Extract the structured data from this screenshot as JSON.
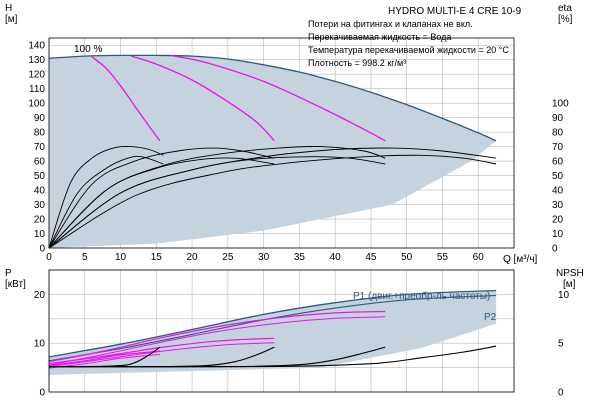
{
  "title": "HYDRO MULTI-E 4 CRE 10-9",
  "info_lines": [
    "Потери на фитингах и клапанах не вкл.",
    "Перекачиваемая жидкость = Вода",
    "Температура перекачиваемой жидкости = 20 °C",
    "Плотность = 998.2 кг/м³"
  ],
  "colors": {
    "envelope_fill": "#c5d3de",
    "envelope_edge": "#2e5a80",
    "speed_curve": "#ee11ee",
    "efficiency": "#000000",
    "npsh": "#000000"
  },
  "chart_data": [
    {
      "type": "line",
      "name": "head",
      "xlabel": "Q [м³/ч]",
      "ylabel": "H\n[м]",
      "ylabel_top": "H",
      "ylabel_unit": "[м]",
      "y2label_top": "eta",
      "y2label_unit": "[%]",
      "xlim": [
        0,
        65
      ],
      "ylim": [
        0,
        145
      ],
      "xticks": [
        0,
        5,
        10,
        15,
        20,
        25,
        30,
        35,
        40,
        45,
        50,
        55,
        60
      ],
      "yticks": [
        0,
        10,
        20,
        30,
        40,
        50,
        60,
        70,
        80,
        90,
        100,
        110,
        120,
        130,
        140
      ],
      "y2ticks": [
        0,
        10,
        20,
        30,
        40,
        50,
        60,
        70,
        80,
        90,
        100
      ],
      "grid": true,
      "annotation": "100 %",
      "envelope_top": {
        "x": [
          0,
          5,
          10,
          15,
          20,
          25,
          30,
          35,
          40,
          45,
          50,
          55,
          60,
          62.5
        ],
        "y": [
          131,
          132.5,
          133,
          133,
          132.5,
          130.5,
          126.5,
          121.5,
          115,
          107.5,
          99,
          89.5,
          79.5,
          74
        ]
      },
      "speed_curves": [
        {
          "x": [
            6,
            8,
            10,
            12,
            14,
            15.5
          ],
          "y": [
            132,
            124,
            112,
            98,
            84,
            74
          ]
        },
        {
          "x": [
            11.5,
            15,
            20,
            25,
            29,
            31.5
          ],
          "y": [
            132.5,
            127,
            116,
            101,
            87,
            74
          ]
        },
        {
          "x": [
            17,
            22,
            30,
            38,
            44,
            47
          ],
          "y": [
            133,
            128,
            115,
            97,
            82,
            74
          ]
        }
      ],
      "efficiency_curves": [
        {
          "x": [
            0,
            3,
            6,
            9,
            11.5,
            14,
            16
          ],
          "y": [
            0,
            45,
            62,
            69,
            70,
            68,
            64
          ]
        },
        {
          "x": [
            0,
            4,
            8,
            11,
            13,
            16
          ],
          "y": [
            0,
            38,
            55,
            62,
            63,
            58
          ]
        },
        {
          "x": [
            0,
            6,
            12,
            18,
            23,
            27,
            31.5
          ],
          "y": [
            0,
            44,
            60,
            67,
            69,
            67,
            62
          ]
        },
        {
          "x": [
            0,
            8,
            15,
            21,
            26,
            31.5
          ],
          "y": [
            0,
            40,
            55,
            61,
            62,
            58
          ]
        },
        {
          "x": [
            0,
            8,
            16,
            24,
            32,
            38,
            44,
            47
          ],
          "y": [
            0,
            40,
            57,
            65,
            69,
            70,
            67,
            62
          ]
        },
        {
          "x": [
            0,
            10,
            20,
            28,
            36,
            42,
            47
          ],
          "y": [
            0,
            38,
            54,
            61,
            63,
            62,
            58
          ]
        },
        {
          "x": [
            0,
            10,
            20,
            30,
            40,
            48,
            55,
            62.5
          ],
          "y": [
            0,
            38,
            54,
            63,
            68,
            69,
            67,
            62
          ]
        },
        {
          "x": [
            0,
            12,
            24,
            34,
            44,
            52,
            58,
            62.5
          ],
          "y": [
            0,
            36,
            52,
            59,
            63,
            64,
            62,
            58
          ]
        }
      ]
    },
    {
      "type": "line",
      "name": "power_npsh",
      "xlim": [
        0,
        65
      ],
      "ylim": [
        0,
        25
      ],
      "ylabel_top": "P",
      "ylabel_unit": "[кВт]",
      "y2label_top": "NPSH",
      "y2label_unit": "[м]",
      "y2lim": [
        0,
        12.5
      ],
      "yticks": [
        0,
        10,
        20
      ],
      "y2ticks": [
        0,
        5,
        10
      ],
      "grid": true,
      "series_labels": [
        "P1 (двиг.+преобр-ль частоты)",
        "P2"
      ],
      "P1": {
        "x": [
          0,
          10,
          20,
          30,
          40,
          50,
          62.5
        ],
        "y": [
          7.2,
          9.8,
          12.8,
          15.9,
          18.3,
          20,
          20.8
        ]
      },
      "P2": {
        "x": [
          0,
          10,
          20,
          30,
          40,
          50,
          62.5
        ],
        "y": [
          6.4,
          8.9,
          11.8,
          14.8,
          17.2,
          18.9,
          19.8
        ]
      },
      "P1_lower": [
        {
          "x": [
            0,
            8,
            16,
            24,
            32,
            40,
            47
          ],
          "y": [
            6.2,
            8.5,
            11.2,
            13.5,
            15.2,
            16.2,
            16.5
          ]
        },
        {
          "x": [
            0,
            8,
            16,
            24,
            31.5
          ],
          "y": [
            5.8,
            7.4,
            9.2,
            10.5,
            11.0
          ]
        },
        {
          "x": [
            0,
            5,
            10,
            15.5
          ],
          "y": [
            5.4,
            6.4,
            7.6,
            8.4
          ]
        }
      ],
      "P2_lower": [
        {
          "x": [
            0,
            8,
            16,
            24,
            32,
            40,
            47
          ],
          "y": [
            5.5,
            7.8,
            10.3,
            12.5,
            14.1,
            15.1,
            15.4
          ]
        },
        {
          "x": [
            0,
            8,
            16,
            24,
            31.5
          ],
          "y": [
            5.2,
            6.8,
            8.4,
            9.6,
            10.1
          ]
        },
        {
          "x": [
            0,
            5,
            10,
            15.5
          ],
          "y": [
            4.9,
            5.8,
            6.9,
            7.7
          ]
        }
      ],
      "npsh_curves": [
        {
          "x": [
            0,
            5,
            10,
            12,
            14,
            15.5
          ],
          "y": [
            2.6,
            2.6,
            2.7,
            3.0,
            3.8,
            4.6
          ]
        },
        {
          "x": [
            0,
            15,
            22,
            26,
            29,
            31.5
          ],
          "y": [
            2.6,
            2.6,
            2.7,
            3.1,
            3.8,
            4.6
          ]
        },
        {
          "x": [
            0,
            25,
            35,
            40,
            44,
            47
          ],
          "y": [
            2.6,
            2.6,
            2.8,
            3.3,
            4.0,
            4.6
          ]
        },
        {
          "x": [
            0,
            30,
            45,
            52,
            58,
            62.5
          ],
          "y": [
            2.6,
            2.6,
            2.9,
            3.5,
            4.1,
            4.7
          ]
        }
      ]
    }
  ]
}
